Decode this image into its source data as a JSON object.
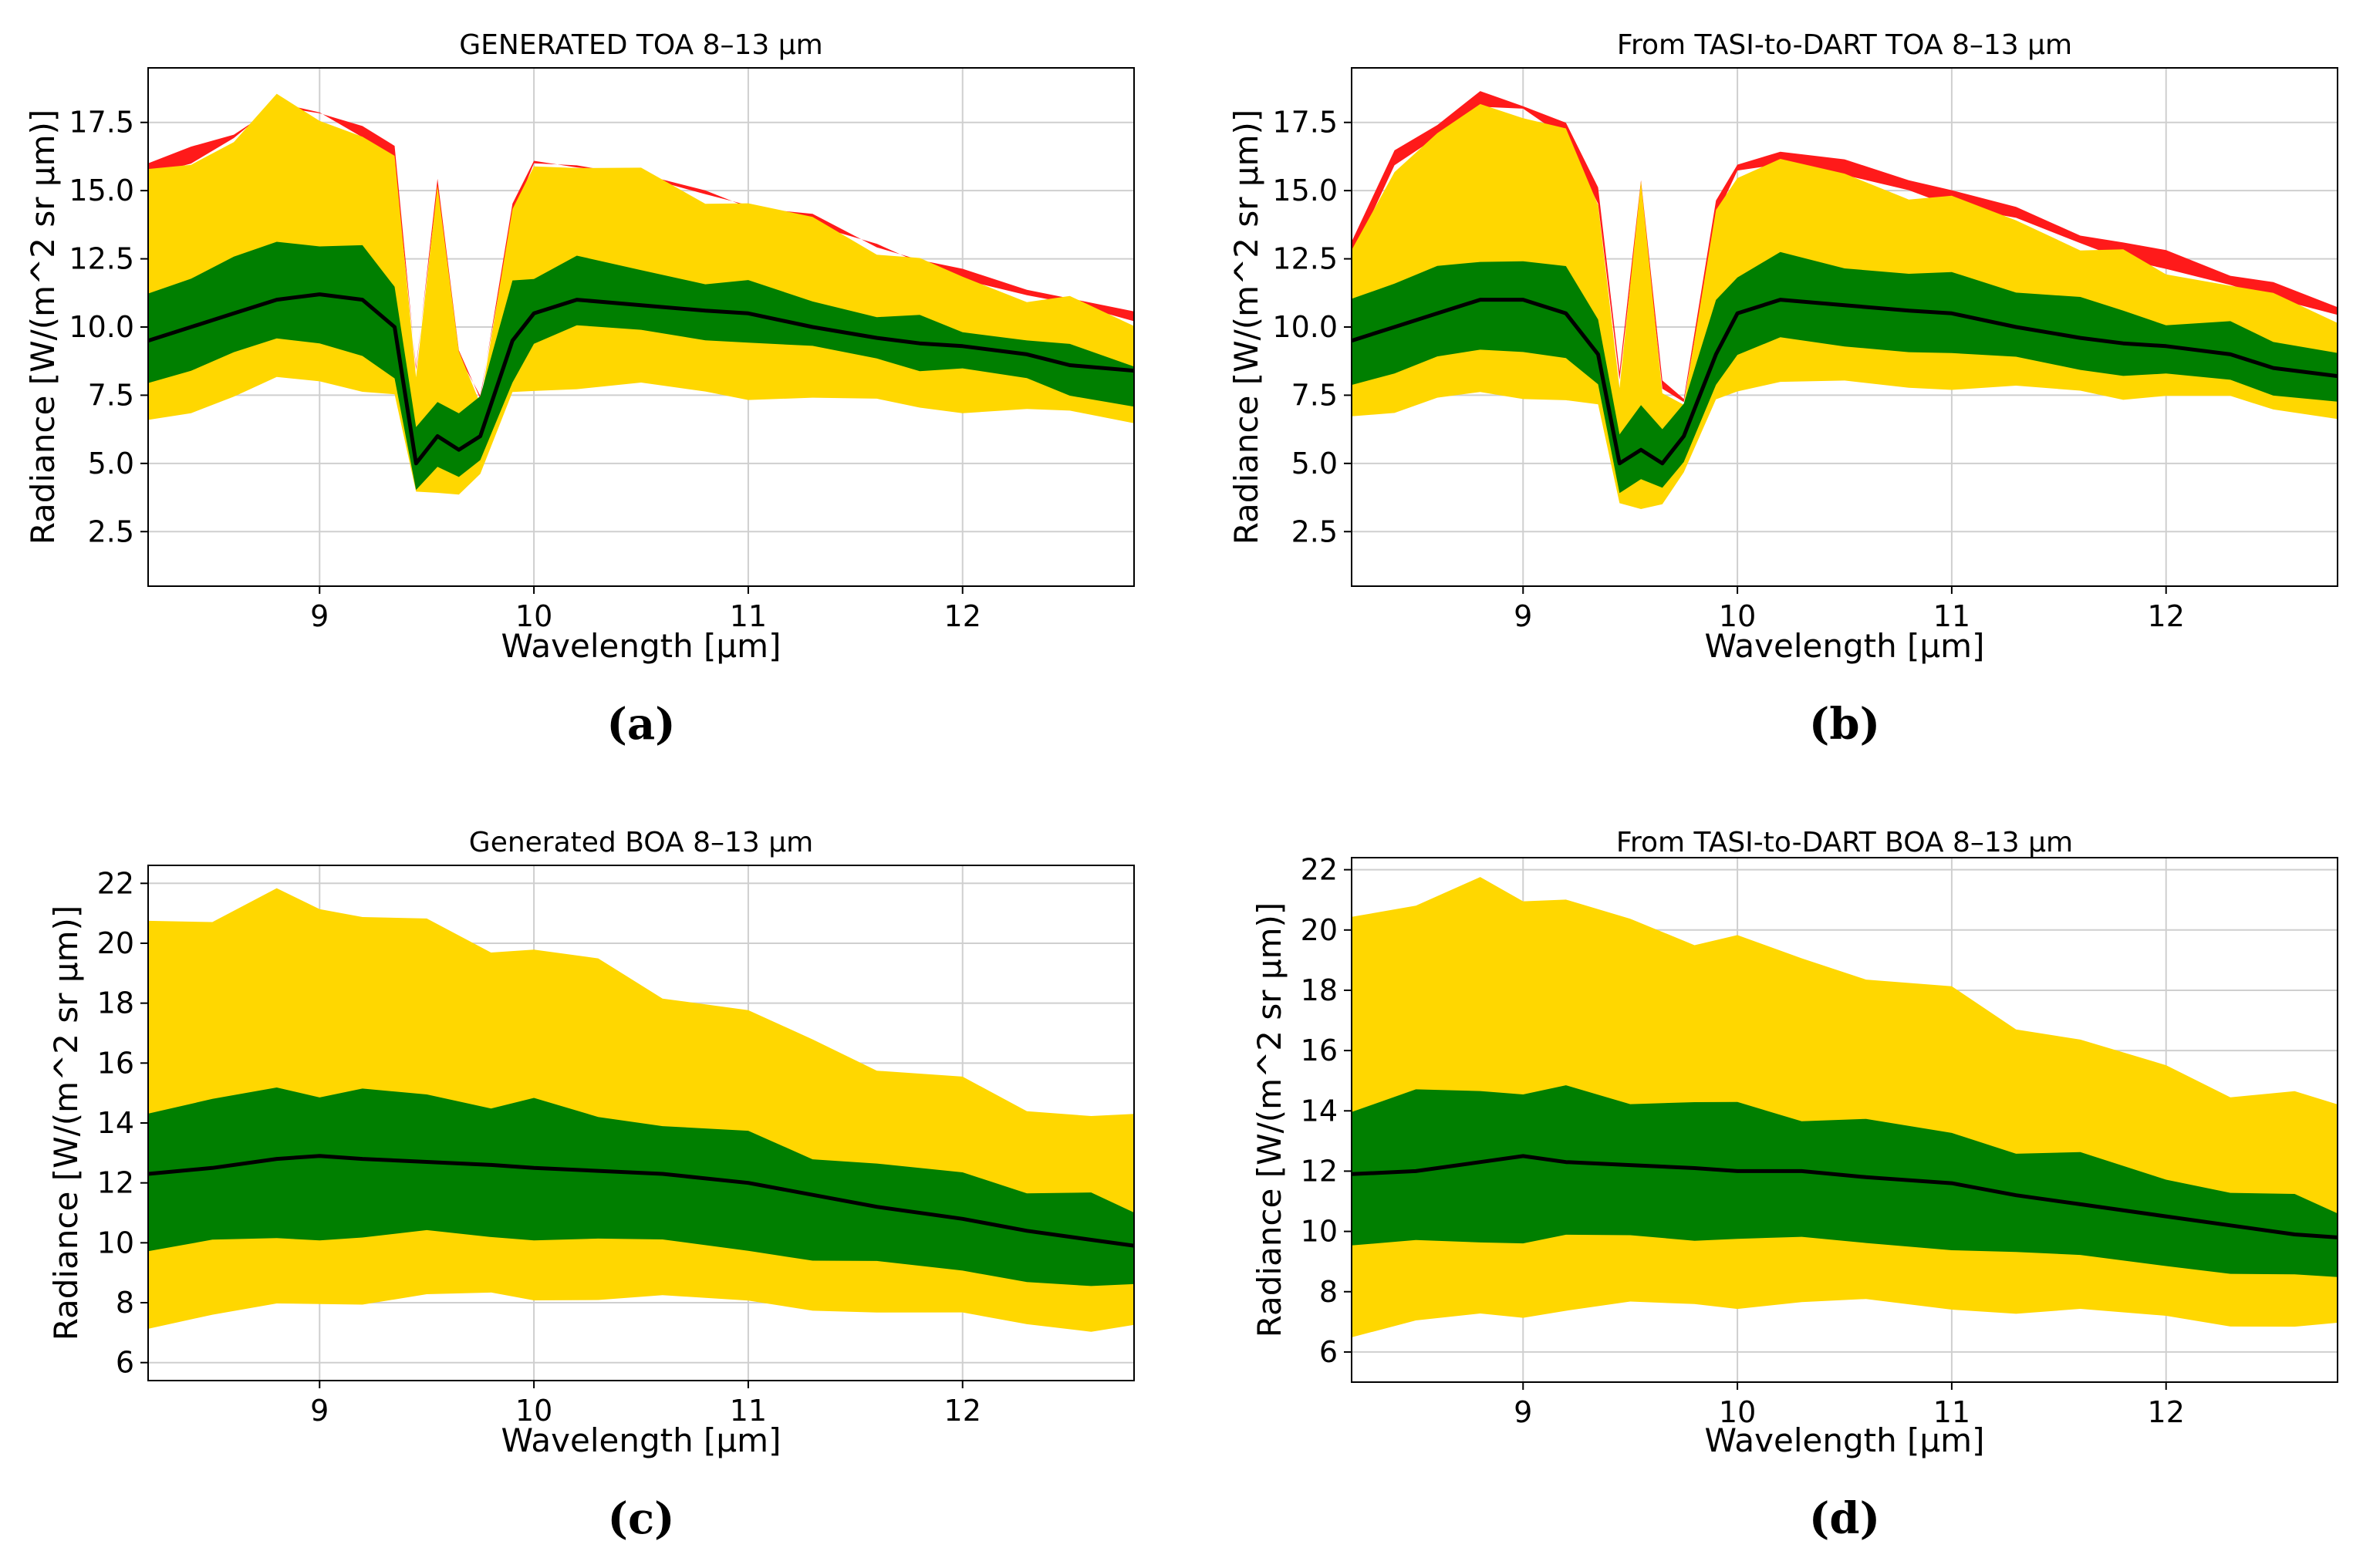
{
  "colors": {
    "red": "#ff1a1a",
    "yellow": "#ffd700",
    "green": "#007f00",
    "black": "#000000",
    "grid": "#cfcfcf"
  },
  "chart_data": [
    {
      "id": "a",
      "type": "area",
      "title": "GENERATED TOA 8–13 μm",
      "xlabel": "Wavelength [μm]",
      "ylabel": "Radiance [W/(m^2 sr μm)]",
      "caption": "(a)",
      "xlim": [
        8.2,
        12.8
      ],
      "ylim": [
        0.5,
        19.5
      ],
      "xticks": [
        9,
        10,
        11,
        12
      ],
      "yticks": [
        2.5,
        5.0,
        7.5,
        10.0,
        12.5,
        15.0,
        17.5
      ],
      "ytick_labels": [
        "2.5",
        "5.0",
        "7.5",
        "10.0",
        "12.5",
        "15.0",
        "17.5"
      ],
      "grid": true,
      "x": [
        8.2,
        8.4,
        8.6,
        8.8,
        9.0,
        9.2,
        9.35,
        9.45,
        9.55,
        9.65,
        9.75,
        9.9,
        10.0,
        10.2,
        10.5,
        10.8,
        11.0,
        11.3,
        11.6,
        11.8,
        12.0,
        12.3,
        12.5,
        12.8
      ],
      "series": [
        {
          "name": "red",
          "values": [
            16.0,
            16.5,
            17.2,
            18.0,
            17.8,
            17.5,
            16.5,
            8.5,
            15.5,
            9.0,
            7.5,
            14.5,
            16.0,
            16.0,
            15.5,
            15.0,
            14.5,
            14.0,
            13.0,
            12.5,
            12.0,
            11.5,
            11.0,
            10.5
          ]
        },
        {
          "name": "yellow_upper",
          "values": [
            15.5,
            16.0,
            17.0,
            18.2,
            17.8,
            17.0,
            16.0,
            8.5,
            15.0,
            9.0,
            7.5,
            14.0,
            16.0,
            16.0,
            15.5,
            14.8,
            14.5,
            13.8,
            13.0,
            12.3,
            11.8,
            11.2,
            10.8,
            10.2
          ]
        },
        {
          "name": "green_upper",
          "values": [
            11.0,
            12.0,
            12.5,
            13.0,
            13.2,
            12.8,
            11.5,
            6.5,
            7.0,
            7.0,
            7.5,
            11.5,
            12.0,
            12.5,
            12.0,
            11.8,
            11.5,
            11.0,
            10.5,
            10.2,
            10.0,
            9.5,
            9.2,
            8.8
          ]
        },
        {
          "name": "mean",
          "values": [
            9.5,
            10.0,
            10.5,
            11.0,
            11.2,
            11.0,
            10.0,
            5.0,
            6.0,
            5.5,
            6.0,
            9.5,
            10.5,
            11.0,
            10.8,
            10.6,
            10.5,
            10.0,
            9.6,
            9.4,
            9.3,
            9.0,
            8.6,
            8.4
          ]
        },
        {
          "name": "green_lower",
          "values": [
            8.0,
            8.5,
            9.0,
            9.5,
            9.5,
            9.0,
            8.0,
            4.0,
            5.0,
            4.5,
            5.0,
            8.0,
            9.5,
            10.0,
            9.8,
            9.6,
            9.5,
            9.2,
            8.8,
            8.5,
            8.5,
            8.0,
            7.5,
            7.2
          ]
        },
        {
          "name": "yellow_lower",
          "values": [
            6.5,
            7.0,
            7.5,
            8.0,
            8.0,
            7.8,
            7.5,
            3.8,
            4.0,
            4.0,
            4.5,
            7.5,
            7.8,
            7.8,
            7.8,
            7.6,
            7.5,
            7.4,
            7.2,
            7.1,
            7.0,
            6.9,
            6.8,
            6.6
          ]
        }
      ]
    },
    {
      "id": "b",
      "type": "area",
      "title": "From TASI-to-DART TOA 8–13 μm",
      "xlabel": "Wavelength [μm]",
      "ylabel": "Radiance [W/(m^2 sr μm)]",
      "caption": "(b)",
      "xlim": [
        8.2,
        12.8
      ],
      "ylim": [
        0.5,
        19.5
      ],
      "xticks": [
        9,
        10,
        11,
        12
      ],
      "yticks": [
        2.5,
        5.0,
        7.5,
        10.0,
        12.5,
        15.0,
        17.5
      ],
      "ytick_labels": [
        "2.5",
        "5.0",
        "7.5",
        "10.0",
        "12.5",
        "15.0",
        "17.5"
      ],
      "grid": true,
      "x": [
        8.2,
        8.4,
        8.6,
        8.8,
        9.0,
        9.2,
        9.35,
        9.45,
        9.55,
        9.65,
        9.75,
        9.9,
        10.0,
        10.2,
        10.5,
        10.8,
        11.0,
        11.3,
        11.6,
        11.8,
        12.0,
        12.3,
        12.5,
        12.8
      ],
      "series": [
        {
          "name": "red",
          "values": [
            13.0,
            16.5,
            17.5,
            18.5,
            18.2,
            17.5,
            15.0,
            8.5,
            15.3,
            8.0,
            7.5,
            14.5,
            16.0,
            16.5,
            16.0,
            15.5,
            15.0,
            14.3,
            13.5,
            13.0,
            12.8,
            12.0,
            11.5,
            10.8
          ]
        },
        {
          "name": "yellow_upper",
          "values": [
            12.5,
            16.0,
            17.0,
            18.0,
            18.0,
            17.0,
            14.5,
            8.0,
            15.0,
            7.8,
            7.2,
            14.0,
            15.8,
            16.0,
            15.5,
            15.0,
            14.5,
            14.0,
            13.0,
            12.5,
            12.2,
            11.5,
            11.0,
            10.5
          ]
        },
        {
          "name": "green_upper",
          "values": [
            11.0,
            11.8,
            12.0,
            12.5,
            12.5,
            12.0,
            10.5,
            6.0,
            7.0,
            6.5,
            7.0,
            11.0,
            12.0,
            12.5,
            12.3,
            12.0,
            11.8,
            11.5,
            11.0,
            10.5,
            10.3,
            10.0,
            9.5,
            9.2
          ]
        },
        {
          "name": "mean",
          "values": [
            9.5,
            10.0,
            10.5,
            11.0,
            11.0,
            10.5,
            9.0,
            5.0,
            5.5,
            5.0,
            6.0,
            9.0,
            10.5,
            11.0,
            10.8,
            10.6,
            10.5,
            10.0,
            9.6,
            9.4,
            9.3,
            9.0,
            8.5,
            8.2
          ]
        },
        {
          "name": "green_lower",
          "values": [
            8.0,
            8.3,
            8.8,
            9.2,
            9.2,
            8.8,
            7.8,
            4.0,
            4.5,
            4.0,
            5.0,
            8.0,
            9.0,
            9.5,
            9.3,
            9.2,
            9.0,
            8.8,
            8.5,
            8.3,
            8.2,
            8.0,
            7.6,
            7.3
          ]
        },
        {
          "name": "yellow_lower",
          "values": [
            6.8,
            7.0,
            7.3,
            7.5,
            7.5,
            7.4,
            7.0,
            3.5,
            3.5,
            3.5,
            4.5,
            7.4,
            7.8,
            7.9,
            7.9,
            7.9,
            7.8,
            7.7,
            7.6,
            7.5,
            7.5,
            7.3,
            7.0,
            6.8
          ]
        }
      ]
    },
    {
      "id": "c",
      "type": "area",
      "title": "Generated BOA 8–13 μm",
      "xlabel": "Wavelength [μm]",
      "ylabel": "Radiance [W/(m^2 sr μm)]",
      "caption": "(c)",
      "xlim": [
        8.2,
        12.8
      ],
      "ylim": [
        5.4,
        22.6
      ],
      "xticks": [
        9,
        10,
        11,
        12
      ],
      "yticks": [
        6,
        8,
        10,
        12,
        14,
        16,
        18,
        20,
        22
      ],
      "ytick_labels": [
        "6",
        "8",
        "10",
        "12",
        "14",
        "16",
        "18",
        "20",
        "22"
      ],
      "grid": true,
      "x": [
        8.2,
        8.5,
        8.8,
        9.0,
        9.2,
        9.5,
        9.8,
        10.0,
        10.3,
        10.6,
        11.0,
        11.3,
        11.6,
        12.0,
        12.3,
        12.6,
        12.8
      ],
      "series": [
        {
          "name": "yellow_upper",
          "values": [
            20.7,
            21.0,
            21.5,
            21.3,
            21.0,
            20.5,
            20.0,
            19.7,
            19.3,
            18.5,
            17.5,
            16.8,
            16.0,
            15.2,
            14.6,
            14.3,
            14.0
          ]
        },
        {
          "name": "green_upper",
          "values": [
            14.5,
            14.8,
            15.0,
            15.1,
            15.0,
            14.9,
            14.7,
            14.6,
            14.3,
            14.0,
            13.5,
            13.0,
            12.6,
            12.2,
            11.9,
            11.5,
            11.0
          ]
        },
        {
          "name": "mean",
          "values": [
            12.3,
            12.5,
            12.8,
            12.9,
            12.8,
            12.7,
            12.6,
            12.5,
            12.4,
            12.3,
            12.0,
            11.6,
            11.2,
            10.8,
            10.4,
            10.1,
            9.9
          ]
        },
        {
          "name": "green_lower",
          "values": [
            9.8,
            10.0,
            10.1,
            10.2,
            10.2,
            10.3,
            10.2,
            10.2,
            10.1,
            10.0,
            9.8,
            9.5,
            9.3,
            9.0,
            8.8,
            8.6,
            8.5
          ]
        },
        {
          "name": "yellow_lower",
          "values": [
            7.3,
            7.6,
            7.8,
            8.0,
            8.1,
            8.2,
            8.2,
            8.2,
            8.2,
            8.1,
            8.0,
            7.9,
            7.7,
            7.5,
            7.3,
            7.2,
            7.2
          ]
        }
      ]
    },
    {
      "id": "d",
      "type": "area",
      "title": "From TASI-to-DART BOA 8–13 μm",
      "xlabel": "Wavelength [μm]",
      "ylabel": "Radiance [W/(m^2 sr μm)]",
      "caption": "(d)",
      "xlim": [
        8.2,
        12.8
      ],
      "ylim": [
        5.0,
        22.4
      ],
      "xticks": [
        9,
        10,
        11,
        12
      ],
      "yticks": [
        6,
        8,
        10,
        12,
        14,
        16,
        18,
        20,
        22
      ],
      "ytick_labels": [
        "6",
        "8",
        "10",
        "12",
        "14",
        "16",
        "18",
        "20",
        "22"
      ],
      "grid": true,
      "x": [
        8.2,
        8.5,
        8.8,
        9.0,
        9.2,
        9.5,
        9.8,
        10.0,
        10.3,
        10.6,
        11.0,
        11.3,
        11.6,
        12.0,
        12.3,
        12.6,
        12.8
      ],
      "series": [
        {
          "name": "yellow_upper",
          "values": [
            20.7,
            20.8,
            21.5,
            21.3,
            20.8,
            20.3,
            19.8,
            19.5,
            19.2,
            18.5,
            17.8,
            17.0,
            16.3,
            15.3,
            14.8,
            14.4,
            14.2
          ]
        },
        {
          "name": "green_upper",
          "values": [
            14.2,
            14.5,
            14.7,
            14.7,
            14.6,
            14.4,
            14.3,
            14.1,
            13.9,
            13.6,
            13.2,
            12.8,
            12.4,
            11.8,
            11.4,
            11.0,
            10.8
          ]
        },
        {
          "name": "mean",
          "values": [
            11.9,
            12.0,
            12.3,
            12.5,
            12.3,
            12.2,
            12.1,
            12.0,
            12.0,
            11.8,
            11.6,
            11.2,
            10.9,
            10.5,
            10.2,
            9.9,
            9.8
          ]
        },
        {
          "name": "green_lower",
          "values": [
            9.5,
            9.6,
            9.7,
            9.7,
            9.8,
            9.8,
            9.8,
            9.8,
            9.7,
            9.6,
            9.5,
            9.3,
            9.1,
            8.9,
            8.7,
            8.5,
            8.4
          ]
        },
        {
          "name": "yellow_lower",
          "values": [
            6.6,
            6.9,
            7.2,
            7.3,
            7.4,
            7.5,
            7.6,
            7.6,
            7.6,
            7.6,
            7.5,
            7.4,
            7.3,
            7.1,
            7.0,
            6.9,
            6.8
          ]
        }
      ]
    }
  ]
}
